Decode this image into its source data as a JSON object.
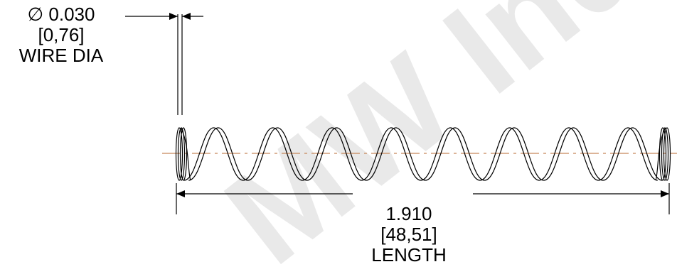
{
  "watermark": {
    "text": "MW Ind",
    "color": "#e9e9e9"
  },
  "wire_diameter": {
    "symbol": "∅",
    "inch": "0.030",
    "mm": "[0,76]",
    "label": "WIRE DIA"
  },
  "length": {
    "inch": "1.910",
    "mm": "[48,51]",
    "label": "LENGTH"
  },
  "colors": {
    "line": "#000000",
    "centerline": "#c8875a"
  },
  "spring": {
    "active_coils": 8
  }
}
